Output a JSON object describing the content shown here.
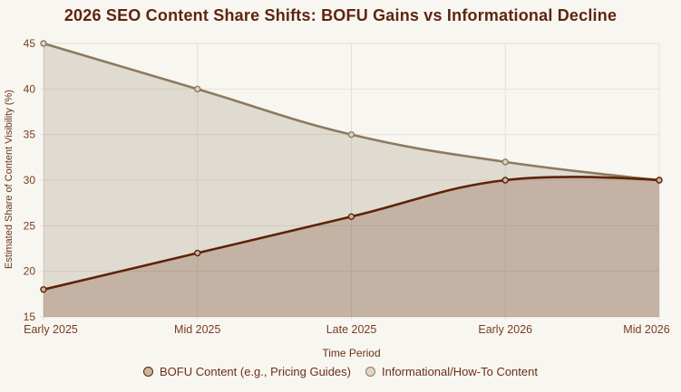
{
  "chart_data": {
    "type": "area",
    "title": "2026 SEO Content Share Shifts: BOFU Gains vs Informational Decline",
    "categories": [
      "Early 2025",
      "Mid 2025",
      "Late 2025",
      "Early 2026",
      "Mid 2026"
    ],
    "series": [
      {
        "name": "BOFU Content (e.g., Pricing Guides)",
        "slug": "bofu-content",
        "values": [
          18,
          22,
          26,
          30,
          30
        ],
        "line_color": "#5e2306",
        "fill_color": "rgba(94,35,6,0.22)",
        "marker_fill": "#c9b7a2"
      },
      {
        "name": "Informational/How-To Content",
        "slug": "informational-content",
        "values": [
          45,
          40,
          35,
          32,
          30
        ],
        "line_color": "#8d7a5e",
        "fill_color": "rgba(141,122,94,0.22)",
        "marker_fill": "#ded5c6"
      }
    ],
    "xlabel": "Time Period",
    "ylabel": "Estimated Share of Content Visibility (%)",
    "ylim": [
      15,
      45
    ],
    "yticks": [
      15,
      20,
      25,
      30,
      35,
      40,
      45
    ],
    "grid": true,
    "legend_position": "bottom",
    "line_tension": 0.4
  },
  "theme": {
    "background": "#f8f6f1",
    "title_color": "#5e2510",
    "tick_text_color": "#7a3c22",
    "axis_title_color": "#6b3318",
    "legend_text_color": "#6b2f18",
    "grid_color": "#e7dfd8",
    "axis_line_color": "#ddd3cb"
  }
}
